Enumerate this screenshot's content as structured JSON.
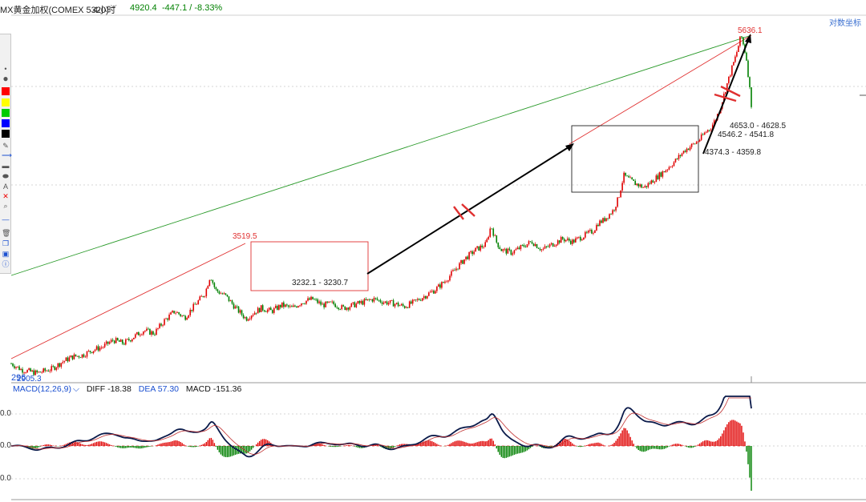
{
  "header": {
    "instrument": "MX黄金加权(COMEX 5320)",
    "interval": "4小时",
    "price": "4920.4",
    "change": "-447.1 / -8.33%"
  },
  "log_axis_label": "对数坐标",
  "annotations": {
    "peak_high": "5636.1",
    "mid_high": "3519.5",
    "low_start": "2905.3",
    "low_start_2": "296",
    "range_low_1": "3232.1 - 3230.7",
    "level_a": "4653.0 - 4628.5",
    "level_b": "4546.2 - 4541.8",
    "level_c": "4374.3 - 4359.8"
  },
  "macd": {
    "label": "MACD(12,26,9)",
    "diff": "DIFF -18.38",
    "dea": "DEA 57.30",
    "macd": "MACD -151.36",
    "axis_labels": [
      "0.0",
      "0.0",
      "0.0"
    ]
  },
  "colors": {
    "up": "#e00000",
    "down": "#008000",
    "trend_red": "#e03030",
    "trend_green": "#2a9a2a",
    "arrow": "#000000",
    "macd_line": "#0a1a4a",
    "dea_line": "#e03030",
    "header_green": "#008000",
    "header_blue": "#1a4fd0"
  },
  "toolbar": {
    "icons": [
      "circle-small-icon",
      "circle-large-icon",
      "color-red-icon",
      "color-yellow-icon",
      "color-green-icon",
      "color-blue-icon",
      "color-black-icon",
      "pencil-icon",
      "line-icon",
      "rect-icon",
      "ellipse-icon",
      "text-icon",
      "delete-icon",
      "zoom-icon",
      "hline-icon",
      "trash-icon",
      "copy-icon",
      "save-icon",
      "info-icon"
    ]
  },
  "chart_data": {
    "type": "line",
    "title": "MX黄金加权(COMEX 5320) 4小时",
    "price_path": [
      [
        0,
        2960
      ],
      [
        2,
        2925
      ],
      [
        5,
        2905.3
      ],
      [
        8,
        2930
      ],
      [
        10,
        2970
      ],
      [
        12,
        3000
      ],
      [
        14,
        3010
      ],
      [
        16,
        3040
      ],
      [
        18,
        3060
      ],
      [
        20,
        3100
      ],
      [
        22,
        3080
      ],
      [
        24,
        3120
      ],
      [
        26,
        3160
      ],
      [
        28,
        3140
      ],
      [
        30,
        3220
      ],
      [
        32,
        3280
      ],
      [
        34,
        3240
      ],
      [
        36,
        3320
      ],
      [
        38,
        3400
      ],
      [
        39,
        3519.5
      ],
      [
        40,
        3420
      ],
      [
        42,
        3380
      ],
      [
        44,
        3300
      ],
      [
        46,
        3232
      ],
      [
        47,
        3260
      ],
      [
        49,
        3300
      ],
      [
        51,
        3280
      ],
      [
        53,
        3320
      ],
      [
        55,
        3300
      ],
      [
        57,
        3340
      ],
      [
        59,
        3360
      ],
      [
        61,
        3320
      ],
      [
        63,
        3330
      ],
      [
        65,
        3300
      ],
      [
        67,
        3320
      ],
      [
        69,
        3340
      ],
      [
        71,
        3360
      ],
      [
        73,
        3340
      ],
      [
        75,
        3330
      ],
      [
        77,
        3310
      ],
      [
        79,
        3340
      ],
      [
        81,
        3380
      ],
      [
        83,
        3420
      ],
      [
        85,
        3480
      ],
      [
        87,
        3560
      ],
      [
        89,
        3640
      ],
      [
        91,
        3700
      ],
      [
        93,
        3740
      ],
      [
        94,
        3880
      ],
      [
        95,
        3760
      ],
      [
        96,
        3700
      ],
      [
        98,
        3680
      ],
      [
        100,
        3720
      ],
      [
        102,
        3760
      ],
      [
        104,
        3700
      ],
      [
        106,
        3740
      ],
      [
        108,
        3780
      ],
      [
        110,
        3760
      ],
      [
        112,
        3800
      ],
      [
        114,
        3840
      ],
      [
        115,
        3900
      ],
      [
        116,
        3920
      ],
      [
        117,
        3960
      ],
      [
        118,
        4000
      ],
      [
        119,
        4100
      ],
      [
        120,
        4280
      ],
      [
        122,
        4220
      ],
      [
        124,
        4180
      ],
      [
        126,
        4250
      ],
      [
        128,
        4320
      ],
      [
        130,
        4400
      ],
      [
        132,
        4500
      ],
      [
        134,
        4560
      ],
      [
        135,
        4600
      ],
      [
        136,
        4660
      ],
      [
        137,
        4700
      ],
      [
        138,
        4780
      ],
      [
        139,
        4900
      ],
      [
        140,
        5080
      ],
      [
        141,
        5250
      ],
      [
        142,
        5420
      ],
      [
        143,
        5636.1
      ],
      [
        144,
        5400
      ],
      [
        145,
        4920.4
      ]
    ],
    "xlim": [
      0,
      145
    ],
    "ylim": [
      2880,
      5700
    ],
    "log_scale": true,
    "grid": true,
    "markers": [
      {
        "label": "3519.5",
        "x": 39,
        "y": 3519.5
      },
      {
        "label": "5636.1",
        "x": 143,
        "y": 5636.1
      },
      {
        "label": "2905.3",
        "x": 5,
        "y": 2905.3
      }
    ],
    "macd": {
      "diff_last": -18.38,
      "dea_last": 57.3,
      "macd_last": -151.36
    }
  }
}
